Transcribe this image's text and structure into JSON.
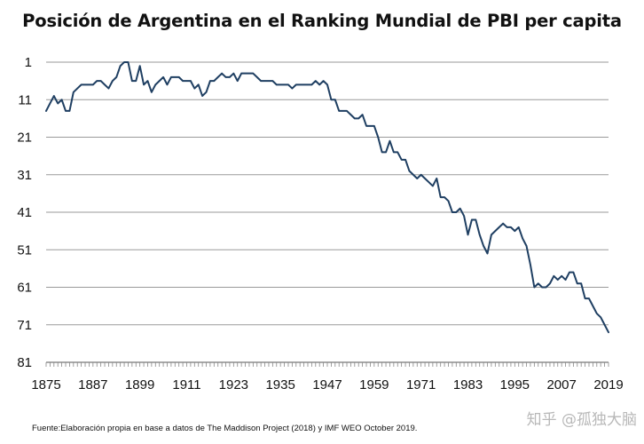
{
  "chart_data": {
    "type": "line",
    "title": "Posición de Argentina en el Ranking Mundial de PBI per capita",
    "xlabel": "",
    "ylabel": "",
    "xlim": [
      1875,
      2019
    ],
    "ylim": [
      1,
      81
    ],
    "y_inverted": true,
    "grid": "horizontal",
    "legend": "none",
    "x_ticks": [
      1875,
      1887,
      1899,
      1911,
      1923,
      1935,
      1947,
      1959,
      1971,
      1983,
      1995,
      2007,
      2019
    ],
    "y_ticks": [
      1,
      11,
      21,
      31,
      41,
      51,
      61,
      71,
      81
    ],
    "series": [
      {
        "color": "#1f3f62",
        "points": [
          [
            1875,
            14
          ],
          [
            1876,
            12
          ],
          [
            1877,
            10
          ],
          [
            1878,
            12
          ],
          [
            1879,
            11
          ],
          [
            1880,
            14
          ],
          [
            1881,
            14
          ],
          [
            1882,
            9
          ],
          [
            1883,
            8
          ],
          [
            1884,
            7
          ],
          [
            1885,
            7
          ],
          [
            1886,
            7
          ],
          [
            1887,
            7
          ],
          [
            1888,
            6
          ],
          [
            1889,
            6
          ],
          [
            1890,
            7
          ],
          [
            1891,
            8
          ],
          [
            1892,
            6
          ],
          [
            1893,
            5
          ],
          [
            1894,
            2
          ],
          [
            1895,
            1
          ],
          [
            1896,
            1
          ],
          [
            1897,
            6
          ],
          [
            1898,
            6
          ],
          [
            1899,
            2
          ],
          [
            1900,
            7
          ],
          [
            1901,
            6
          ],
          [
            1902,
            9
          ],
          [
            1903,
            7
          ],
          [
            1904,
            6
          ],
          [
            1905,
            5
          ],
          [
            1906,
            7
          ],
          [
            1907,
            5
          ],
          [
            1908,
            5
          ],
          [
            1909,
            5
          ],
          [
            1910,
            6
          ],
          [
            1911,
            6
          ],
          [
            1912,
            6
          ],
          [
            1913,
            8
          ],
          [
            1914,
            7
          ],
          [
            1915,
            10
          ],
          [
            1916,
            9
          ],
          [
            1917,
            6
          ],
          [
            1918,
            6
          ],
          [
            1919,
            5
          ],
          [
            1920,
            4
          ],
          [
            1921,
            5
          ],
          [
            1922,
            5
          ],
          [
            1923,
            4
          ],
          [
            1924,
            6
          ],
          [
            1925,
            4
          ],
          [
            1926,
            4
          ],
          [
            1927,
            4
          ],
          [
            1928,
            4
          ],
          [
            1929,
            5
          ],
          [
            1930,
            6
          ],
          [
            1931,
            6
          ],
          [
            1932,
            6
          ],
          [
            1933,
            6
          ],
          [
            1934,
            7
          ],
          [
            1935,
            7
          ],
          [
            1936,
            7
          ],
          [
            1937,
            7
          ],
          [
            1938,
            8
          ],
          [
            1939,
            7
          ],
          [
            1940,
            7
          ],
          [
            1941,
            7
          ],
          [
            1942,
            7
          ],
          [
            1943,
            7
          ],
          [
            1944,
            6
          ],
          [
            1945,
            7
          ],
          [
            1946,
            6
          ],
          [
            1947,
            7
          ],
          [
            1948,
            11
          ],
          [
            1949,
            11
          ],
          [
            1950,
            14
          ],
          [
            1951,
            14
          ],
          [
            1952,
            14
          ],
          [
            1953,
            15
          ],
          [
            1954,
            16
          ],
          [
            1955,
            16
          ],
          [
            1956,
            15
          ],
          [
            1957,
            18
          ],
          [
            1958,
            18
          ],
          [
            1959,
            18
          ],
          [
            1960,
            21
          ],
          [
            1961,
            25
          ],
          [
            1962,
            25
          ],
          [
            1963,
            22
          ],
          [
            1964,
            25
          ],
          [
            1965,
            25
          ],
          [
            1966,
            27
          ],
          [
            1967,
            27
          ],
          [
            1968,
            30
          ],
          [
            1969,
            31
          ],
          [
            1970,
            32
          ],
          [
            1971,
            31
          ],
          [
            1972,
            32
          ],
          [
            1973,
            33
          ],
          [
            1974,
            34
          ],
          [
            1975,
            32
          ],
          [
            1976,
            37
          ],
          [
            1977,
            37
          ],
          [
            1978,
            38
          ],
          [
            1979,
            41
          ],
          [
            1980,
            41
          ],
          [
            1981,
            40
          ],
          [
            1982,
            42
          ],
          [
            1983,
            47
          ],
          [
            1984,
            43
          ],
          [
            1985,
            43
          ],
          [
            1986,
            47
          ],
          [
            1987,
            50
          ],
          [
            1988,
            52
          ],
          [
            1989,
            47
          ],
          [
            1990,
            46
          ],
          [
            1991,
            45
          ],
          [
            1992,
            44
          ],
          [
            1993,
            45
          ],
          [
            1994,
            45
          ],
          [
            1995,
            46
          ],
          [
            1996,
            45
          ],
          [
            1997,
            48
          ],
          [
            1998,
            50
          ],
          [
            1999,
            55
          ],
          [
            2000,
            61
          ],
          [
            2001,
            60
          ],
          [
            2002,
            61
          ],
          [
            2003,
            61
          ],
          [
            2004,
            60
          ],
          [
            2005,
            58
          ],
          [
            2006,
            59
          ],
          [
            2007,
            58
          ],
          [
            2008,
            59
          ],
          [
            2009,
            57
          ],
          [
            2010,
            57
          ],
          [
            2011,
            60
          ],
          [
            2012,
            60
          ],
          [
            2013,
            64
          ],
          [
            2014,
            64
          ],
          [
            2015,
            66
          ],
          [
            2016,
            68
          ],
          [
            2017,
            69
          ],
          [
            2018,
            71
          ],
          [
            2019,
            73
          ]
        ]
      }
    ]
  },
  "source_note": "Fuente:Elaboración propia en base a datos de The Maddison Project (2018) y IMF WEO October 2019.",
  "watermark": "知乎 @孤独大脑"
}
